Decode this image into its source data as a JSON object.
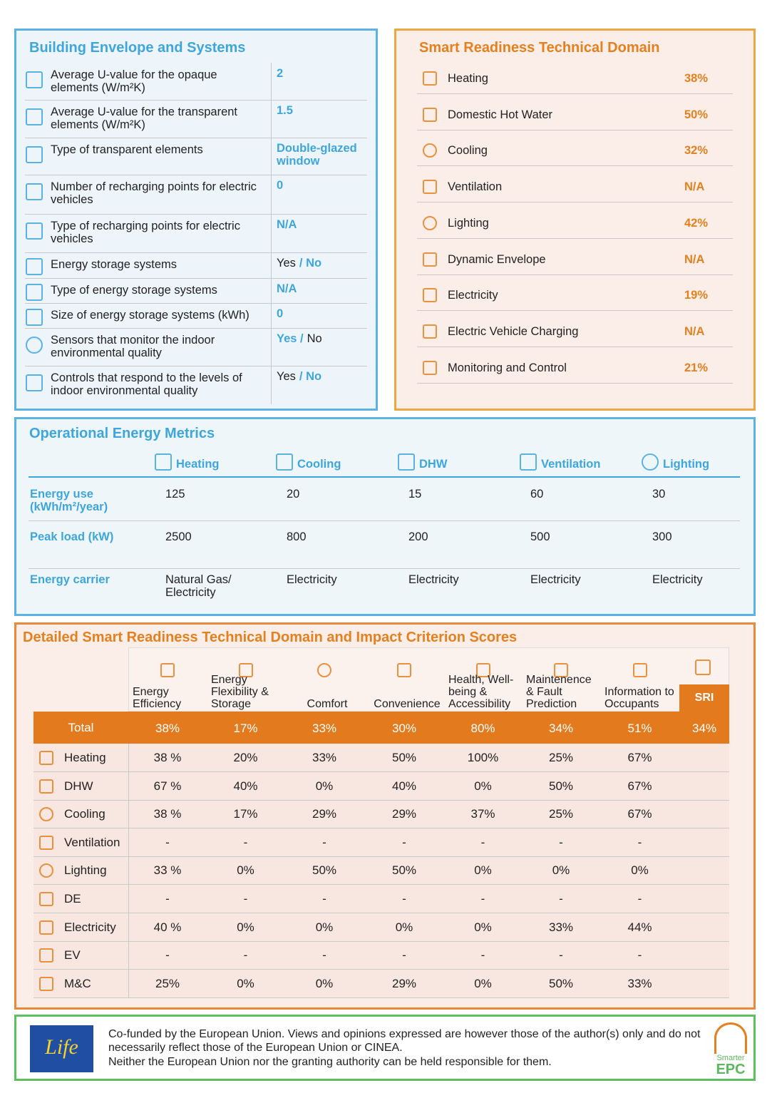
{
  "envelope": {
    "title": "Building Envelope and Systems",
    "rows": [
      {
        "label": "Average U-value for the opaque elements (W/m²K)",
        "value": [
          {
            "text": "2",
            "highlight": true
          }
        ]
      },
      {
        "label": "Average U-value for the transparent elements (W/m²K)",
        "value": [
          {
            "text": "1.5",
            "highlight": true
          }
        ]
      },
      {
        "label": "Type of transparent elements",
        "value": [
          {
            "text": "Double-glazed window",
            "highlight": true
          }
        ]
      },
      {
        "label": "Number of recharging points for electric vehicles",
        "value": [
          {
            "text": "0",
            "highlight": true
          }
        ]
      },
      {
        "label": "Type of recharging points for electric vehicles",
        "value": [
          {
            "text": "N/A",
            "highlight": true
          }
        ]
      },
      {
        "label": "Energy storage systems",
        "value": [
          {
            "text": "Yes",
            "highlight": false
          },
          {
            "text": "/ No",
            "highlight": true
          }
        ]
      },
      {
        "label": "Type of energy storage systems",
        "value": [
          {
            "text": "N/A",
            "highlight": true
          }
        ]
      },
      {
        "label": "Size of energy storage systems (kWh)",
        "value": [
          {
            "text": "0",
            "highlight": true
          }
        ]
      },
      {
        "label": "Sensors that monitor the indoor environmental quality",
        "value": [
          {
            "text": "Yes /",
            "highlight": true
          },
          {
            "text": "No",
            "highlight": false
          }
        ]
      },
      {
        "label": "Controls that respond to the levels of indoor environmental quality",
        "value": [
          {
            "text": "Yes",
            "highlight": false
          },
          {
            "text": "/ No",
            "highlight": true
          }
        ]
      }
    ]
  },
  "smart_readiness": {
    "title": "Smart Readiness Technical Domain",
    "rows": [
      {
        "label": "Heating",
        "value": "38%"
      },
      {
        "label": "Domestic Hot Water",
        "value": "50%"
      },
      {
        "label": "Cooling",
        "value": "32%"
      },
      {
        "label": "Ventilation",
        "value": "N/A"
      },
      {
        "label": "Lighting",
        "value": "42%"
      },
      {
        "label": "Dynamic Envelope",
        "value": "N/A"
      },
      {
        "label": "Electricity",
        "value": "19%"
      },
      {
        "label": "Electric Vehicle Charging",
        "value": "N/A"
      },
      {
        "label": "Monitoring and Control",
        "value": "21%"
      }
    ]
  },
  "operational": {
    "title": "Operational Energy Metrics",
    "columns": [
      "Heating",
      "Cooling",
      "DHW",
      "Ventilation",
      "Lighting"
    ],
    "rows": [
      {
        "label": "Energy use (kWh/m²/year)",
        "values": [
          125,
          20,
          15,
          60,
          30
        ]
      },
      {
        "label": "Peak load (kW)",
        "values": [
          2500,
          800,
          200,
          500,
          300
        ]
      },
      {
        "label": "Energy carrier",
        "values": [
          "Natural Gas/ Electricity",
          "Electricity",
          "Electricity",
          "Electricity",
          "Electricity"
        ]
      }
    ]
  },
  "detailed": {
    "title": "Detailed Smart Readiness Technical Domain and Impact Criterion Scores",
    "columns": [
      "Energy Efficiency",
      "Energy Flexibility & Storage",
      "Comfort",
      "Convenience",
      "Health, Well-being & Accessibility",
      "Maintenence & Fault Prediction",
      "Information to Occupants"
    ],
    "sri_label": "SRI",
    "total": {
      "label": "Total",
      "values": [
        "38%",
        "17%",
        "33%",
        "30%",
        "80%",
        "34%",
        "51%"
      ],
      "sri": "34%"
    },
    "rows": [
      {
        "label": "Heating",
        "values": [
          "38 %",
          "20%",
          "33%",
          "50%",
          "100%",
          "25%",
          "67%"
        ]
      },
      {
        "label": "DHW",
        "values": [
          "67 %",
          "40%",
          "0%",
          "40%",
          "0%",
          "50%",
          "67%"
        ]
      },
      {
        "label": "Cooling",
        "values": [
          "38 %",
          "17%",
          "29%",
          "29%",
          "37%",
          "25%",
          "67%"
        ]
      },
      {
        "label": "Ventilation",
        "values": [
          "-",
          "-",
          "-",
          "-",
          "-",
          "-",
          "-"
        ]
      },
      {
        "label": "Lighting",
        "values": [
          "33 %",
          "0%",
          "50%",
          "50%",
          "0%",
          "0%",
          "0%"
        ]
      },
      {
        "label": "DE",
        "values": [
          "-",
          "-",
          "-",
          "-",
          "-",
          "-",
          "-"
        ]
      },
      {
        "label": "Electricity",
        "values": [
          "40 %",
          "0%",
          "0%",
          "0%",
          "0%",
          "33%",
          "44%"
        ]
      },
      {
        "label": "EV",
        "values": [
          "-",
          "-",
          "-",
          "-",
          "-",
          "-",
          "-"
        ]
      },
      {
        "label": "M&C",
        "values": [
          "25%",
          "0%",
          "0%",
          "29%",
          "0%",
          "50%",
          "33%"
        ]
      }
    ]
  },
  "footer": {
    "lines": [
      "Co-funded by the European Union. Views and opinions expressed are however those of the author(s) only and do not necessarily reflect those of the European Union or CINEA.",
      "Neither the European Union nor the granting authority can be held responsible for them."
    ],
    "life_logo": "Life",
    "brand_top": "Smarter",
    "brand_bottom": "EPC"
  }
}
